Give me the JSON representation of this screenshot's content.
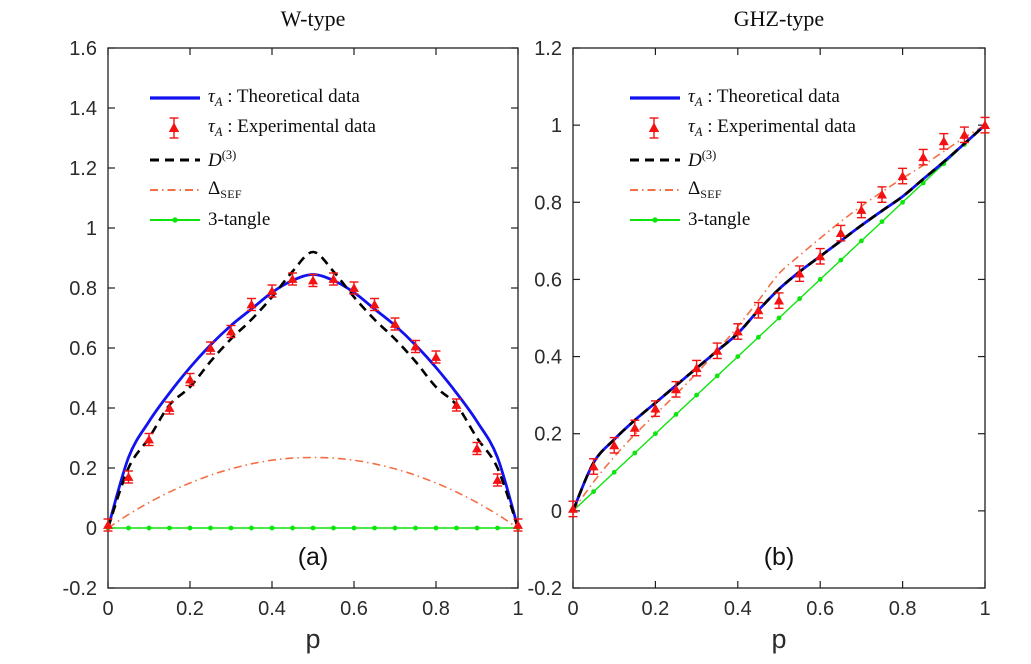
{
  "figure": {
    "background": "#ffffff",
    "axis_color": "#1f1f1f",
    "tick_label_color": "#2b2b2b"
  },
  "chart_data": [
    {
      "type": "line",
      "title": "W-type",
      "panel_label": "(a)",
      "xlabel": "p",
      "xlim": [
        0,
        1
      ],
      "ylim": [
        -0.2,
        1.6
      ],
      "xticks": [
        "0",
        "0.2",
        "0.4",
        "0.6",
        "0.8",
        "1"
      ],
      "yticks": [
        "-0.2",
        "0",
        "0.2",
        "0.4",
        "0.6",
        "0.8",
        "1",
        "1.2",
        "1.4",
        "1.6"
      ],
      "grid": false,
      "legend_position": "upper-left-inside",
      "x": [
        0,
        0.05,
        0.1,
        0.15,
        0.2,
        0.25,
        0.3,
        0.35,
        0.4,
        0.45,
        0.5,
        0.55,
        0.6,
        0.65,
        0.7,
        0.75,
        0.8,
        0.85,
        0.9,
        0.95,
        1
      ],
      "series": [
        {
          "name": "tau-a-theoretical",
          "kind": "line",
          "style": "solid",
          "smooth": true,
          "color": "#1212ef",
          "width": 2.8,
          "label_parts": [
            {
              "t": "τ",
              "f": "i"
            },
            {
              "t": "A",
              "f": "isub"
            },
            {
              "t": " : Theoretical data",
              "f": "n"
            }
          ],
          "y": [
            0,
            0.235,
            0.355,
            0.45,
            0.535,
            0.61,
            0.675,
            0.73,
            0.785,
            0.825,
            0.845,
            0.825,
            0.785,
            0.73,
            0.675,
            0.61,
            0.535,
            0.45,
            0.355,
            0.235,
            0
          ]
        },
        {
          "name": "tau-a-experimental",
          "kind": "scatter",
          "marker": "triangle-up",
          "color": "#f31111",
          "err": 0.02,
          "label_parts": [
            {
              "t": "τ",
              "f": "i"
            },
            {
              "t": "A",
              "f": "isub"
            },
            {
              "t": " : Experimental data",
              "f": "n"
            }
          ],
          "y": [
            0.01,
            0.17,
            0.295,
            0.4,
            0.495,
            0.6,
            0.655,
            0.745,
            0.79,
            0.83,
            0.825,
            0.83,
            0.8,
            0.745,
            0.68,
            0.605,
            0.57,
            0.41,
            0.265,
            0.16,
            0.01
          ]
        },
        {
          "name": "d3",
          "kind": "line",
          "style": "dashed",
          "smooth": true,
          "color": "#000000",
          "width": 2.6,
          "dash": "9 6",
          "label_parts": [
            {
              "t": "D",
              "f": "i"
            },
            {
              "t": "(3)",
              "f": "sup"
            }
          ],
          "y": [
            0,
            0.2,
            0.3,
            0.41,
            0.47,
            0.555,
            0.63,
            0.695,
            0.77,
            0.855,
            0.92,
            0.855,
            0.77,
            0.695,
            0.63,
            0.555,
            0.47,
            0.41,
            0.3,
            0.2,
            0
          ]
        },
        {
          "name": "delta-sef",
          "kind": "line",
          "style": "dashdot",
          "smooth": true,
          "color": "#f46f45",
          "width": 1.6,
          "dash": "8 4 1.5 4",
          "label_parts": [
            {
              "t": "Δ",
              "f": "n"
            },
            {
              "t": "SEF",
              "f": "sub"
            }
          ],
          "y": [
            0,
            0.045,
            0.085,
            0.12,
            0.15,
            0.176,
            0.197,
            0.214,
            0.226,
            0.233,
            0.235,
            0.233,
            0.226,
            0.214,
            0.197,
            0.176,
            0.15,
            0.12,
            0.085,
            0.045,
            0
          ]
        },
        {
          "name": "three-tangle",
          "kind": "line-marker",
          "style": "solid",
          "smooth": false,
          "marker": "dot",
          "color": "#0ce60c",
          "width": 1.4,
          "label_parts": [
            {
              "t": "3-tangle",
              "f": "n"
            }
          ],
          "y": [
            0,
            0,
            0,
            0,
            0,
            0,
            0,
            0,
            0,
            0,
            0,
            0,
            0,
            0,
            0,
            0,
            0,
            0,
            0,
            0,
            0
          ]
        }
      ]
    },
    {
      "type": "line",
      "title": "GHZ-type",
      "panel_label": "(b)",
      "xlabel": "p",
      "xlim": [
        0,
        1
      ],
      "ylim": [
        -0.2,
        1.2
      ],
      "xticks": [
        "0",
        "0.2",
        "0.4",
        "0.6",
        "0.8",
        "1"
      ],
      "yticks": [
        "-0.2",
        "0",
        "0.2",
        "0.4",
        "0.6",
        "0.8",
        "1",
        "1.2"
      ],
      "grid": false,
      "legend_position": "upper-left-inside",
      "x": [
        0,
        0.05,
        0.1,
        0.15,
        0.2,
        0.25,
        0.3,
        0.35,
        0.4,
        0.45,
        0.5,
        0.55,
        0.6,
        0.65,
        0.7,
        0.75,
        0.8,
        0.85,
        0.9,
        0.95,
        1
      ],
      "series": [
        {
          "name": "tau-a-theoretical",
          "kind": "line",
          "style": "solid",
          "smooth": true,
          "color": "#1212ef",
          "width": 2.8,
          "label_parts": [
            {
              "t": "τ",
              "f": "i"
            },
            {
              "t": "A",
              "f": "isub"
            },
            {
              "t": " : Theoretical data",
              "f": "n"
            }
          ],
          "y": [
            0,
            0.125,
            0.185,
            0.235,
            0.28,
            0.325,
            0.37,
            0.415,
            0.46,
            0.52,
            0.575,
            0.62,
            0.66,
            0.7,
            0.74,
            0.778,
            0.815,
            0.86,
            0.905,
            0.952,
            1
          ]
        },
        {
          "name": "tau-a-experimental",
          "kind": "scatter",
          "marker": "triangle-up",
          "color": "#f31111",
          "err": 0.02,
          "label_parts": [
            {
              "t": "τ",
              "f": "i"
            },
            {
              "t": "A",
              "f": "isub"
            },
            {
              "t": " : Experimental data",
              "f": "n"
            }
          ],
          "y": [
            0.005,
            0.115,
            0.17,
            0.215,
            0.265,
            0.315,
            0.37,
            0.415,
            0.465,
            0.52,
            0.545,
            0.615,
            0.66,
            0.72,
            0.78,
            0.82,
            0.868,
            0.917,
            0.958,
            0.975,
            1
          ]
        },
        {
          "name": "d3",
          "kind": "line",
          "style": "dashed",
          "smooth": true,
          "color": "#000000",
          "width": 2.6,
          "dash": "9 6",
          "label_parts": [
            {
              "t": "D",
              "f": "i"
            },
            {
              "t": "(3)",
              "f": "sup"
            }
          ],
          "y": [
            0,
            0.125,
            0.185,
            0.235,
            0.28,
            0.325,
            0.37,
            0.415,
            0.46,
            0.52,
            0.575,
            0.62,
            0.66,
            0.7,
            0.74,
            0.778,
            0.815,
            0.86,
            0.905,
            0.952,
            1
          ]
        },
        {
          "name": "delta-sef",
          "kind": "line",
          "style": "dashdot",
          "smooth": true,
          "color": "#f46f45",
          "width": 1.6,
          "dash": "8 4 1.5 4",
          "label_parts": [
            {
              "t": "Δ",
              "f": "n"
            },
            {
              "t": "SEF",
              "f": "sub"
            }
          ],
          "y": [
            0,
            0.075,
            0.14,
            0.198,
            0.25,
            0.302,
            0.357,
            0.415,
            0.478,
            0.545,
            0.615,
            0.662,
            0.707,
            0.75,
            0.79,
            0.827,
            0.862,
            0.896,
            0.932,
            0.968,
            1
          ]
        },
        {
          "name": "three-tangle",
          "kind": "line-marker",
          "style": "solid",
          "smooth": false,
          "marker": "dot",
          "color": "#0ce60c",
          "width": 1.4,
          "label_parts": [
            {
              "t": "3-tangle",
              "f": "n"
            }
          ],
          "y": [
            0,
            0.05,
            0.1,
            0.15,
            0.2,
            0.25,
            0.3,
            0.35,
            0.4,
            0.45,
            0.5,
            0.55,
            0.6,
            0.65,
            0.7,
            0.75,
            0.8,
            0.85,
            0.9,
            0.95,
            1
          ]
        }
      ]
    }
  ]
}
